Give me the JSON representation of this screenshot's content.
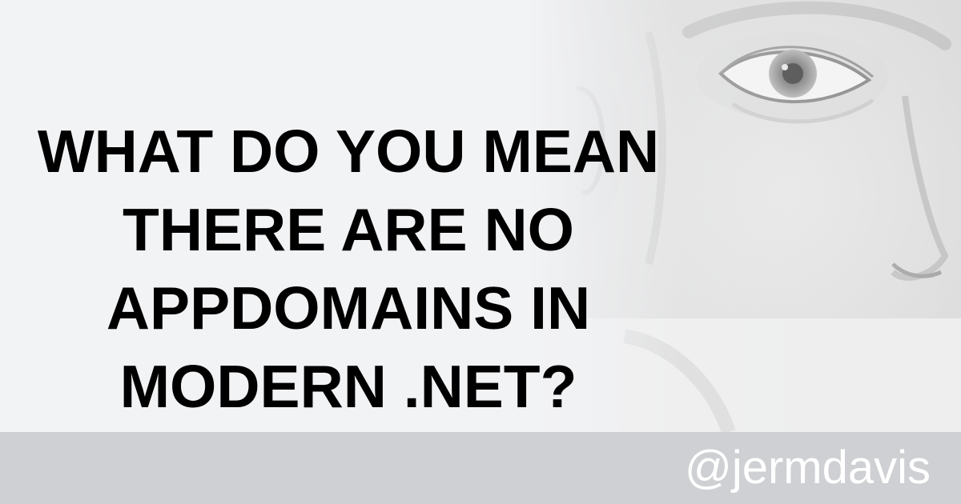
{
  "headline": {
    "lines": [
      "WHAT DO YOU MEAN",
      "THERE ARE NO",
      "APPDOMAINS IN",
      "MODERN .NET?"
    ]
  },
  "footer": {
    "handle": "@jermdavis"
  },
  "colors": {
    "background": "#f2f3f5",
    "headline": "#000000",
    "footer_bar": "#cfd0d3",
    "handle": "#ffffff"
  }
}
